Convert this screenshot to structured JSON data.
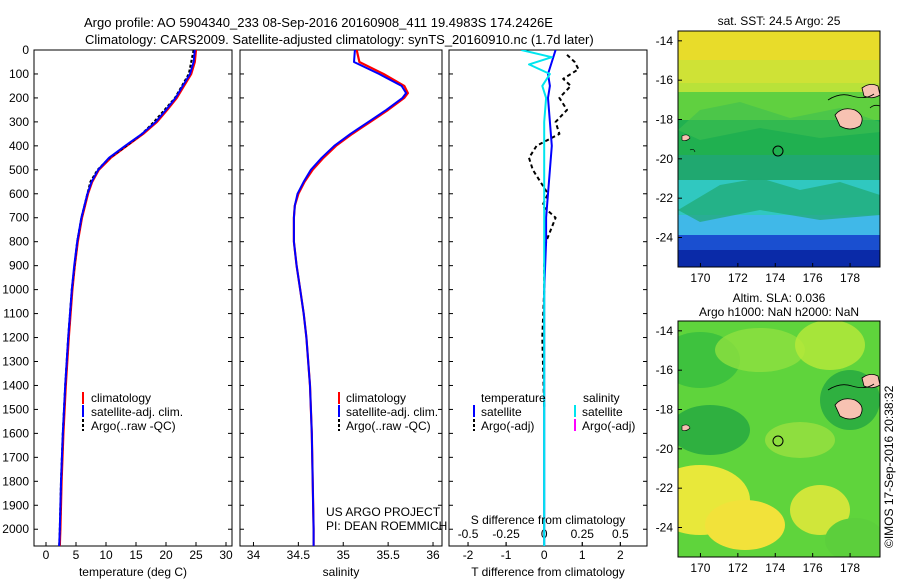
{
  "header": {
    "line1": "Argo profile: AO 5904340_233 08-Sep-2016 20160908_411 19.4983S 174.2426E",
    "line2": "Climatology: CARS2009. Satellite-adjusted climatology: synTS_20160910.nc (1.7d later)"
  },
  "colors": {
    "climatology": "#ff0000",
    "satellite": "#0000ff",
    "argo": "#000000",
    "salinity_satellite": "#00e5ee",
    "salinity_argo": "#ff00ff"
  },
  "chart_data": [
    {
      "type": "line",
      "panel": "temperature",
      "xlabel": "temperature (deg C)",
      "ylabel": "",
      "xlim": [
        -2,
        31
      ],
      "ylim": [
        2070,
        0
      ],
      "x_ticks": [
        0,
        5,
        10,
        15,
        20,
        25,
        30
      ],
      "y_ticks": [
        0,
        100,
        200,
        300,
        400,
        500,
        600,
        700,
        800,
        900,
        1000,
        1100,
        1200,
        1300,
        1400,
        1500,
        1600,
        1700,
        1800,
        1900,
        2000
      ],
      "legend": [
        "climatology",
        "satellite-adj. clim.",
        "Argo(..raw -QC)"
      ],
      "series": [
        {
          "name": "climatology",
          "depth": [
            0,
            50,
            100,
            150,
            200,
            250,
            300,
            350,
            400,
            450,
            500,
            550,
            600,
            700,
            800,
            900,
            1000,
            1200,
            1400,
            1600,
            1800,
            2000,
            2070
          ],
          "values": [
            25.0,
            24.8,
            24.2,
            23.0,
            21.8,
            20.2,
            18.5,
            16.2,
            13.5,
            10.8,
            8.8,
            7.7,
            7.0,
            6.0,
            5.3,
            4.8,
            4.4,
            3.8,
            3.3,
            2.9,
            2.6,
            2.4,
            2.3
          ]
        },
        {
          "name": "satellite-adj. clim.",
          "depth": [
            0,
            50,
            100,
            150,
            200,
            250,
            300,
            350,
            400,
            450,
            500,
            550,
            600,
            700,
            800,
            900,
            1000,
            1200,
            1400,
            1600,
            1800,
            2000,
            2070
          ],
          "values": [
            24.8,
            24.6,
            24.0,
            22.8,
            21.6,
            20.0,
            18.3,
            16.0,
            13.2,
            10.5,
            8.7,
            7.6,
            6.9,
            5.9,
            5.2,
            4.7,
            4.3,
            3.7,
            3.2,
            2.8,
            2.5,
            2.3,
            2.2
          ]
        },
        {
          "name": "Argo(..raw -QC)",
          "depth": [
            0,
            100,
            200,
            300,
            350,
            400,
            450,
            500,
            550,
            600,
            700,
            800,
            1000,
            1200,
            1400,
            1600,
            1800,
            2000,
            2070
          ],
          "values": [
            24.6,
            23.8,
            21.5,
            18.0,
            16.0,
            13.4,
            10.6,
            8.6,
            7.4,
            6.9,
            5.9,
            5.2,
            4.3,
            3.7,
            3.2,
            2.8,
            2.5,
            2.3,
            2.2
          ]
        }
      ]
    },
    {
      "type": "line",
      "panel": "salinity",
      "xlabel": "salinity",
      "ylabel": "",
      "xlim": [
        33.85,
        36.1
      ],
      "ylim": [
        2070,
        0
      ],
      "x_ticks": [
        34,
        34.5,
        35,
        35.5,
        36
      ],
      "legend": [
        "climatology",
        "satellite-adj. clim.",
        "Argo(..raw -QC)"
      ],
      "annotation": [
        "US ARGO PROJECT",
        "PI: DEAN ROEMMICH"
      ],
      "series": [
        {
          "name": "climatology",
          "depth": [
            0,
            50,
            100,
            150,
            180,
            200,
            250,
            300,
            350,
            400,
            450,
            500,
            550,
            600,
            650,
            700,
            800,
            900,
            1000,
            1100,
            1200,
            1300,
            1400,
            1600,
            1800,
            2000,
            2070
          ],
          "values": [
            35.15,
            35.18,
            35.45,
            35.68,
            35.72,
            35.68,
            35.5,
            35.3,
            35.1,
            34.92,
            34.78,
            34.66,
            34.57,
            34.5,
            34.46,
            34.45,
            34.45,
            34.48,
            34.52,
            34.56,
            34.59,
            34.61,
            34.63,
            34.65,
            34.66,
            34.67,
            34.67
          ]
        },
        {
          "name": "satellite-adj. clim.",
          "depth": [
            0,
            50,
            100,
            150,
            180,
            200,
            250,
            300,
            350,
            400,
            450,
            500,
            550,
            600,
            650,
            700,
            800,
            900,
            1000,
            1100,
            1200,
            1300,
            1400,
            1600,
            1800,
            2000,
            2070
          ],
          "values": [
            35.13,
            35.12,
            35.4,
            35.65,
            35.7,
            35.66,
            35.48,
            35.28,
            35.08,
            34.9,
            34.76,
            34.64,
            34.56,
            34.49,
            34.46,
            34.45,
            34.45,
            34.48,
            34.52,
            34.56,
            34.59,
            34.61,
            34.63,
            34.65,
            34.66,
            34.67,
            34.67
          ]
        }
      ]
    },
    {
      "type": "line",
      "panel": "difference",
      "xlabel": "T difference from climatology",
      "top_xlabel": "S difference from climatology",
      "xlim": [
        -2.5,
        2.7
      ],
      "ylim": [
        2070,
        0
      ],
      "x_ticks": [
        -2,
        -1,
        0,
        1,
        2
      ],
      "top_ticks": [
        "-0.5",
        "-0.25",
        "0",
        "0.25",
        "0.5"
      ],
      "legend_temperature": {
        "title": "temperature",
        "items": [
          "satellite",
          "Argo(-adj)"
        ]
      },
      "legend_salinity": {
        "title": "salinity",
        "items": [
          "satellite",
          "Argo(-adj)"
        ]
      },
      "series": [
        {
          "name": "satellite",
          "depth": [
            0,
            50,
            100,
            150,
            200,
            300,
            400,
            500,
            600,
            700,
            800,
            1000,
            1500,
            2070
          ],
          "values": [
            0.3,
            0.2,
            0.1,
            0.15,
            0.1,
            0.15,
            0.2,
            0.15,
            0.1,
            0.05,
            0.05,
            0.0,
            0.0,
            0.0
          ]
        },
        {
          "name": "Argo(-adj)",
          "depth": [
            20,
            50,
            80,
            120,
            150,
            200,
            250,
            300,
            350,
            400,
            450,
            500,
            550,
            600,
            650,
            700,
            800,
            900,
            1000,
            1200,
            1500
          ],
          "values": [
            0.6,
            0.8,
            0.9,
            0.5,
            0.7,
            0.4,
            0.6,
            0.3,
            0.4,
            -0.2,
            -0.4,
            -0.3,
            -0.1,
            0.1,
            -0.05,
            0.3,
            0.05,
            0.0,
            0.0,
            -0.05,
            0.0
          ]
        },
        {
          "name": "salinity satellite",
          "depth": [
            0,
            30,
            60,
            100,
            150,
            200,
            300,
            500,
            800,
            1200,
            2070
          ],
          "values": [
            -0.6,
            0.2,
            -0.4,
            0.15,
            -0.05,
            0.05,
            0.0,
            0.0,
            0.0,
            0.0,
            0.0
          ]
        }
      ]
    },
    {
      "type": "heatmap",
      "panel": "sst-map",
      "title": "sat. SST: 24.5  Argo: 25",
      "x_ticks": [
        170,
        172,
        174,
        176,
        178
      ],
      "y_ticks": [
        -14,
        -16,
        -18,
        -20,
        -22,
        -24
      ],
      "xlim": [
        168.8,
        179.6
      ],
      "ylim": [
        -25.5,
        -13.5
      ],
      "argo_position": {
        "lon": 174.2426,
        "lat": -19.4983
      }
    },
    {
      "type": "heatmap",
      "panel": "sla-map",
      "title": "Altim. SLA: 0.036",
      "subtitle": "Argo h1000: NaN h2000: NaN",
      "x_ticks": [
        170,
        172,
        174,
        176,
        178
      ],
      "y_ticks": [
        -14,
        -16,
        -18,
        -20,
        -22,
        -24
      ],
      "xlim": [
        168.8,
        179.6
      ],
      "ylim": [
        -25.5,
        -13.5
      ],
      "argo_position": {
        "lon": 174.2426,
        "lat": -19.4983
      }
    }
  ],
  "footer": {
    "credit": "©IMOS 17-Sep-2016 20:38:32"
  }
}
